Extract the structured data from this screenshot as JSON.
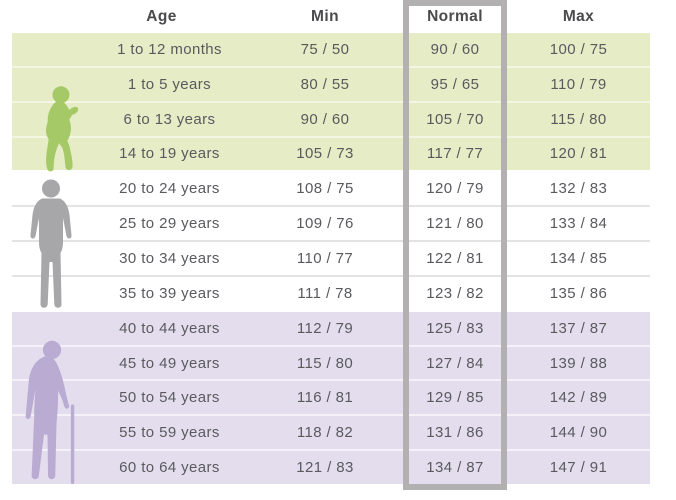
{
  "columns": {
    "age": "Age",
    "min": "Min",
    "normal": "Normal",
    "max": "Max"
  },
  "chart_data": {
    "type": "table",
    "columns": [
      "Age",
      "Min",
      "Normal",
      "Max"
    ],
    "highlighted_column": "Normal",
    "rows": [
      [
        "1 to 12 months",
        "75 / 50",
        "90 / 60",
        "100 / 75"
      ],
      [
        "1 to 5 years",
        "80 / 55",
        "95 / 65",
        "110 / 79"
      ],
      [
        "6 to 13 years",
        "90 / 60",
        "105 / 70",
        "115 / 80"
      ],
      [
        "14 to 19 years",
        "105 / 73",
        "117 / 77",
        "120 / 81"
      ],
      [
        "20 to 24 years",
        "108 / 75",
        "120 / 79",
        "132 / 83"
      ],
      [
        "25 to 29 years",
        "109 / 76",
        "121 / 80",
        "133 / 84"
      ],
      [
        "30 to 34 years",
        "110 / 77",
        "122 / 81",
        "134 / 85"
      ],
      [
        "35 to 39 years",
        "111 / 78",
        "123 / 82",
        "135 / 86"
      ],
      [
        "40 to 44 years",
        "112 / 79",
        "125 / 83",
        "137 / 87"
      ],
      [
        "45 to 49 years",
        "115 / 80",
        "127 / 84",
        "139 / 88"
      ],
      [
        "50 to 54 years",
        "116 / 81",
        "129 / 85",
        "142 / 89"
      ],
      [
        "55 to 59 years",
        "118 / 82",
        "131 / 86",
        "144 / 90"
      ],
      [
        "60 to 64 years",
        "121 / 83",
        "134 / 87",
        "147 / 91"
      ]
    ]
  },
  "groups": [
    {
      "name": "child",
      "figure": "child-silhouette",
      "figure_color": "#a5c966",
      "row_bg": "#e6ecc6",
      "divider": "#f3f6e2",
      "row_start": 0,
      "row_count": 4
    },
    {
      "name": "adult",
      "figure": "adult-silhouette",
      "figure_color": "#a7a7a9",
      "row_bg": "#ffffff",
      "divider": "#e3e3e4",
      "row_start": 4,
      "row_count": 4
    },
    {
      "name": "senior",
      "figure": "senior-silhouette",
      "figure_color": "#b9abd2",
      "row_bg": "#e4ddee",
      "divider": "#f4f1f8",
      "row_start": 8,
      "row_count": 5
    }
  ],
  "colors": {
    "background": "#ffffff",
    "highlight_border": "#b2b0b1",
    "header_text": "#4b4b4e",
    "cell_text": "#595a5e"
  }
}
